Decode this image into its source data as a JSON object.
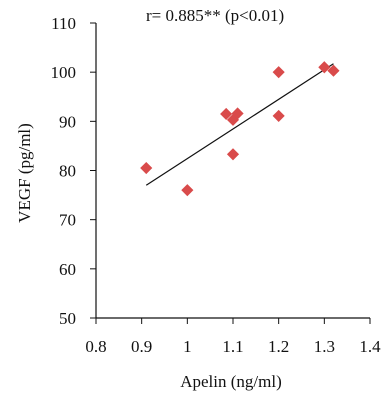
{
  "chart_data": {
    "type": "scatter",
    "title": "",
    "annotation": "r= 0.885** (p<0.01)",
    "xlabel": "Apelin (ng/ml)",
    "ylabel": "VEGF (pg/ml)",
    "xlim": [
      0.8,
      1.4
    ],
    "ylim": [
      50,
      110
    ],
    "xticks": [
      "0.8",
      "0.9",
      "1",
      "1.1",
      "1.2",
      "1.3",
      "1.4"
    ],
    "yticks": [
      "50",
      "60",
      "70",
      "80",
      "90",
      "100",
      "110"
    ],
    "grid": false,
    "legend": false,
    "colors": {
      "points": "#d94b4b",
      "trendline": "#111111",
      "axes": "#111111"
    },
    "series": [
      {
        "values": [
          {
            "x": 0.91,
            "y": 80.5
          },
          {
            "x": 1.0,
            "y": 76.0
          },
          {
            "x": 1.085,
            "y": 91.5
          },
          {
            "x": 1.1,
            "y": 90.3
          },
          {
            "x": 1.1,
            "y": 83.3
          },
          {
            "x": 1.11,
            "y": 91.6
          },
          {
            "x": 1.2,
            "y": 100.0
          },
          {
            "x": 1.2,
            "y": 91.1
          },
          {
            "x": 1.3,
            "y": 101.0
          },
          {
            "x": 1.32,
            "y": 100.3
          }
        ]
      }
    ],
    "trendline": {
      "x": [
        0.91,
        1.32
      ],
      "y": [
        77.0,
        101.7
      ]
    }
  }
}
